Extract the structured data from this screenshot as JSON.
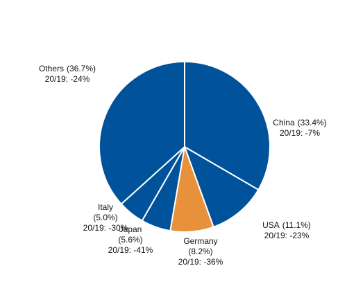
{
  "chart_data": {
    "type": "pie",
    "categories": [
      "China",
      "USA",
      "Germany",
      "Japan",
      "Italy",
      "Others"
    ],
    "values": [
      33.4,
      11.1,
      8.2,
      5.6,
      5.0,
      36.7
    ],
    "value_labels": [
      "(33.4%)",
      "(11.1%)",
      "(8.2%)",
      "(5.6%)",
      "(5.0%)",
      "(36.7%)"
    ],
    "changes": [
      -7,
      -23,
      -36,
      -41,
      -30,
      -24
    ],
    "change_labels": [
      "20/19: -7%",
      "20/19: -23%",
      "20/19: -36%",
      "20/19: -41%",
      "20/19: -30%",
      "20/19: -24%"
    ],
    "colors": [
      "#00539b",
      "#00539b",
      "#e8913c",
      "#00539b",
      "#00539b",
      "#00539b"
    ]
  }
}
